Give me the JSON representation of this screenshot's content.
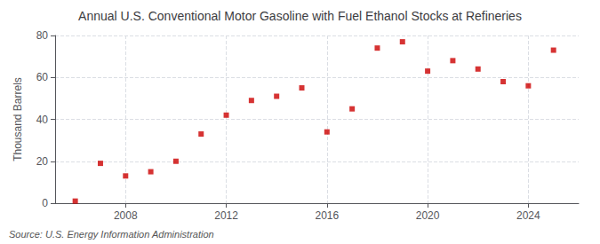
{
  "chart_data": {
    "type": "scatter",
    "title": "Annual U.S. Conventional Motor Gasoline with Fuel Ethanol Stocks at Refineries",
    "ylabel": "Thousand Barrels",
    "source": "Source: U.S. Energy Information Administration",
    "x": [
      2006,
      2007,
      2008,
      2009,
      2010,
      2011,
      2012,
      2013,
      2014,
      2015,
      2016,
      2017,
      2018,
      2019,
      2020,
      2021,
      2022,
      2023,
      2024,
      2025
    ],
    "values": [
      1,
      19,
      13,
      15,
      20,
      33,
      42,
      49,
      51,
      55,
      34,
      45,
      74,
      77,
      63,
      68,
      64,
      58,
      56,
      73
    ],
    "color": "#cc0000",
    "marker": "square",
    "xlim": [
      2005.2,
      2026.0
    ],
    "xticks": [
      2008,
      2012,
      2016,
      2020,
      2024
    ],
    "ylim": [
      0,
      80
    ],
    "yticks": [
      0,
      20,
      40,
      60,
      80
    ],
    "grid": true
  }
}
